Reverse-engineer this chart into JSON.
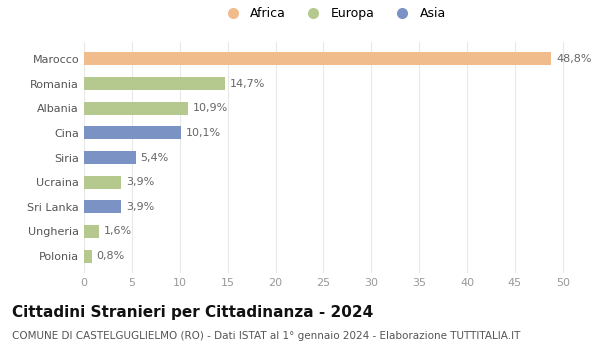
{
  "countries": [
    "Marocco",
    "Romania",
    "Albania",
    "Cina",
    "Siria",
    "Ucraina",
    "Sri Lanka",
    "Ungheria",
    "Polonia"
  ],
  "values": [
    48.8,
    14.7,
    10.9,
    10.1,
    5.4,
    3.9,
    3.9,
    1.6,
    0.8
  ],
  "labels": [
    "48,8%",
    "14,7%",
    "10,9%",
    "10,1%",
    "5,4%",
    "3,9%",
    "3,9%",
    "1,6%",
    "0,8%"
  ],
  "colors": [
    "#f0bc8c",
    "#b5c98e",
    "#b5c98e",
    "#7b93c4",
    "#7b93c4",
    "#b5c98e",
    "#7b93c4",
    "#b5c98e",
    "#b5c98e"
  ],
  "legend_labels": [
    "Africa",
    "Europa",
    "Asia"
  ],
  "legend_colors": [
    "#f0bc8c",
    "#b5c98e",
    "#7b93c4"
  ],
  "title": "Cittadini Stranieri per Cittadinanza - 2024",
  "subtitle": "COMUNE DI CASTELGUGLIELMO (RO) - Dati ISTAT al 1° gennaio 2024 - Elaborazione TUTTITALIA.IT",
  "xlim": [
    0,
    52
  ],
  "xticks": [
    0,
    5,
    10,
    15,
    20,
    25,
    30,
    35,
    40,
    45,
    50
  ],
  "grid_color": "#e8e8e8",
  "bar_height": 0.52,
  "title_fontsize": 11,
  "subtitle_fontsize": 7.5,
  "label_fontsize": 8,
  "tick_fontsize": 8,
  "legend_fontsize": 9,
  "bg_color": "#ffffff"
}
